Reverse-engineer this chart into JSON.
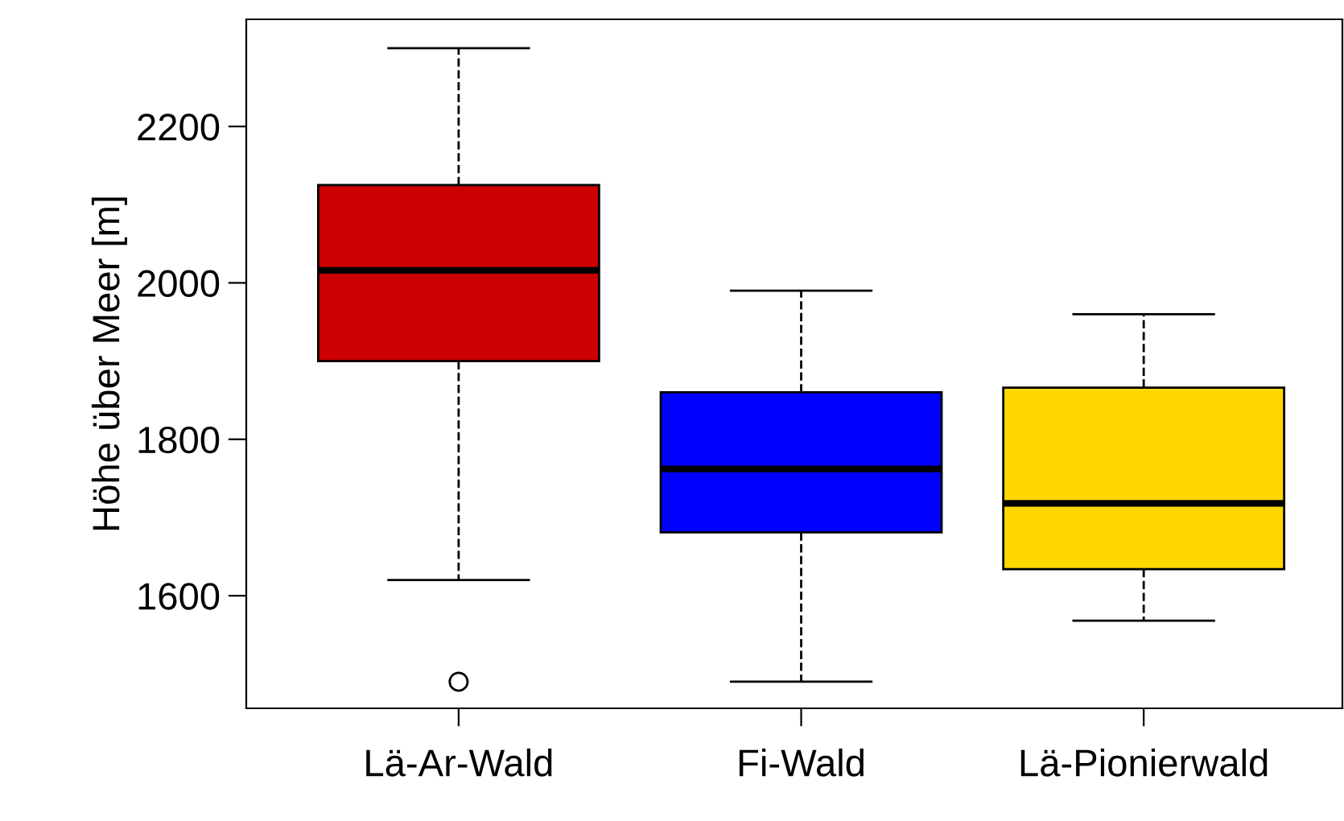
{
  "chart_data": {
    "type": "box",
    "ylabel": "Höhe über Meer [m]",
    "categories": [
      "Lä-Ar-Wald",
      "Fi-Wald",
      "Lä-Pionierwald"
    ],
    "boxes": [
      {
        "low": 1620,
        "q1": 1900,
        "median": 2016,
        "q3": 2125,
        "high": 2300,
        "outliers": [
          1490
        ]
      },
      {
        "low": 1490,
        "q1": 1681,
        "median": 1762,
        "q3": 1860,
        "high": 1990
      },
      {
        "low": 1568,
        "q1": 1634,
        "median": 1718,
        "q3": 1866,
        "high": 1960
      }
    ],
    "colors": [
      "#cc0000",
      "#0000ff",
      "#ffd700"
    ],
    "ylim": [
      1456,
      2337
    ],
    "yticks": [
      1600,
      1800,
      2000,
      2200
    ],
    "grid": false,
    "legend": false
  }
}
